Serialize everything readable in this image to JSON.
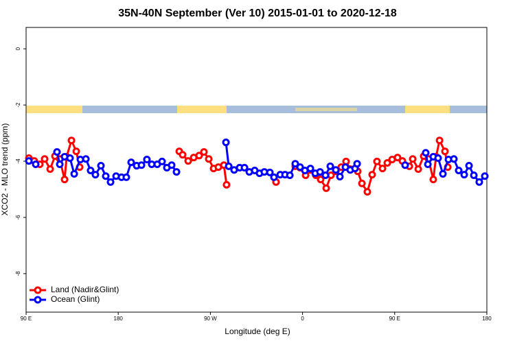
{
  "chart_data": {
    "type": "line",
    "title": "35N-40N September (Ver 10)   2015-01-01 to 2020-12-18",
    "x_label": "Longitude (deg E)",
    "y_label": "XCO2 - MLO trend (ppm)",
    "xlim": [
      90,
      540
    ],
    "xticks": [
      {
        "value": 90,
        "label": "90 E"
      },
      180,
      {
        "value": 270,
        "label": "90 W"
      },
      {
        "value": 360,
        "label": "0"
      },
      {
        "value": 450,
        "label": "90 E"
      },
      {
        "value": 540,
        "label": "180"
      }
    ],
    "ylim": [
      -9.37,
      0.76
    ],
    "yticks": [
      0,
      -2,
      -4,
      -6,
      -8
    ],
    "legend": "bottom-left",
    "series": [
      {
        "name": "Land (Nadir&Glint)",
        "color": "#ff0000",
        "x": [
          92.7,
          98.0,
          103.4,
          108.1,
          113.5,
          118.2,
          122.9,
          127.6,
          129.6,
          134.3,
          139.0,
          142.3,
          null,
          239.6,
          242.9,
          248.3,
          253.7,
          259.0,
          263.7,
          268.4,
          273.1,
          277.8,
          283.2,
          285.8,
          null,
          334.1,
          null,
          352.9,
          357.6,
          363.0,
          367.7,
          373.0,
          377.7,
          383.1,
          387.8,
          392.5,
          397.8,
          402.5,
          406.6,
          413.9,
          418.0,
          423.3,
          428.0,
          432.7,
          438.1,
          442.8,
          447.5,
          452.8,
          457.5,
          464.3,
          467.6,
          473.0,
          478.3,
          483.0,
          487.7,
          490.4,
          493.8,
          499.1,
          501.8
        ],
        "values": [
          -3.89,
          -3.99,
          -4.11,
          -3.92,
          -4.28,
          -3.82,
          -3.92,
          -4.65,
          -3.84,
          -3.26,
          -3.65,
          -4.21,
          null,
          -3.65,
          -3.77,
          -3.99,
          -3.87,
          -3.8,
          -3.67,
          -3.92,
          -4.26,
          -4.21,
          -4.14,
          -4.84,
          null,
          -4.74,
          null,
          -4.18,
          -4.23,
          -4.5,
          -4.31,
          -4.5,
          -4.65,
          -4.96,
          -4.5,
          -4.36,
          -4.21,
          -4.01,
          -4.28,
          -4.36,
          -4.79,
          -5.09,
          -4.48,
          -4.01,
          -4.26,
          -4.06,
          -3.94,
          -3.87,
          -3.99,
          -4.18,
          -3.92,
          -4.28,
          -3.82,
          -3.92,
          -4.65,
          -3.84,
          -3.26,
          -3.65,
          -4.21
        ]
      },
      {
        "name": "Ocean (Glint)",
        "color": "#0000ff",
        "x": [
          92.7,
          99.4,
          null,
          120.2,
          122.9,
          127.6,
          132.9,
          137.0,
          143.0,
          148.4,
          153.0,
          157.7,
          163.1,
          167.8,
          172.5,
          177.9,
          183.2,
          187.9,
          192.6,
          198.0,
          202.7,
          208.0,
          212.7,
          218.1,
          222.8,
          227.5,
          232.2,
          236.9,
          null,
          285.2,
          287.9,
          293.2,
          298.6,
          303.3,
          308.0,
          313.3,
          318.0,
          322.7,
          328.1,
          332.1,
          338.2,
          342.9,
          347.6,
          352.9,
          357.6,
          362.3,
          367.7,
          372.4,
          377.1,
          382.4,
          387.1,
          392.5,
          396.5,
          401.9,
          406.6,
          411.3,
          413.3,
          null,
          460.2,
          null,
          480.3,
          482.4,
          487.7,
          492.4,
          497.1,
          502.5,
          507.8,
          512.5,
          517.9,
          522.6,
          527.3,
          532.6,
          538.0
        ],
        "values": [
          -3.99,
          -4.11,
          null,
          -3.67,
          -4.11,
          -3.84,
          -3.89,
          -4.45,
          -3.94,
          -3.92,
          -4.33,
          -4.48,
          -4.16,
          -4.53,
          -4.74,
          -4.53,
          -4.57,
          -4.57,
          -4.04,
          -4.16,
          -4.14,
          -3.94,
          -4.11,
          -4.11,
          -4.01,
          -4.23,
          -4.14,
          -4.38,
          null,
          -3.33,
          -4.18,
          -4.31,
          -4.23,
          -4.23,
          -4.38,
          -4.33,
          -4.43,
          -4.38,
          -4.4,
          -4.57,
          -4.48,
          -4.48,
          -4.5,
          -4.09,
          -4.21,
          -4.33,
          -4.26,
          -4.43,
          -4.38,
          -4.5,
          -4.18,
          -4.31,
          -4.55,
          -4.21,
          -4.31,
          -4.26,
          -4.09,
          null,
          -4.14,
          null,
          -3.7,
          -4.11,
          -3.84,
          -3.89,
          -4.45,
          -3.94,
          -3.92,
          -4.33,
          -4.48,
          -4.16,
          -4.5,
          -4.74,
          -4.53
        ]
      }
    ]
  }
}
